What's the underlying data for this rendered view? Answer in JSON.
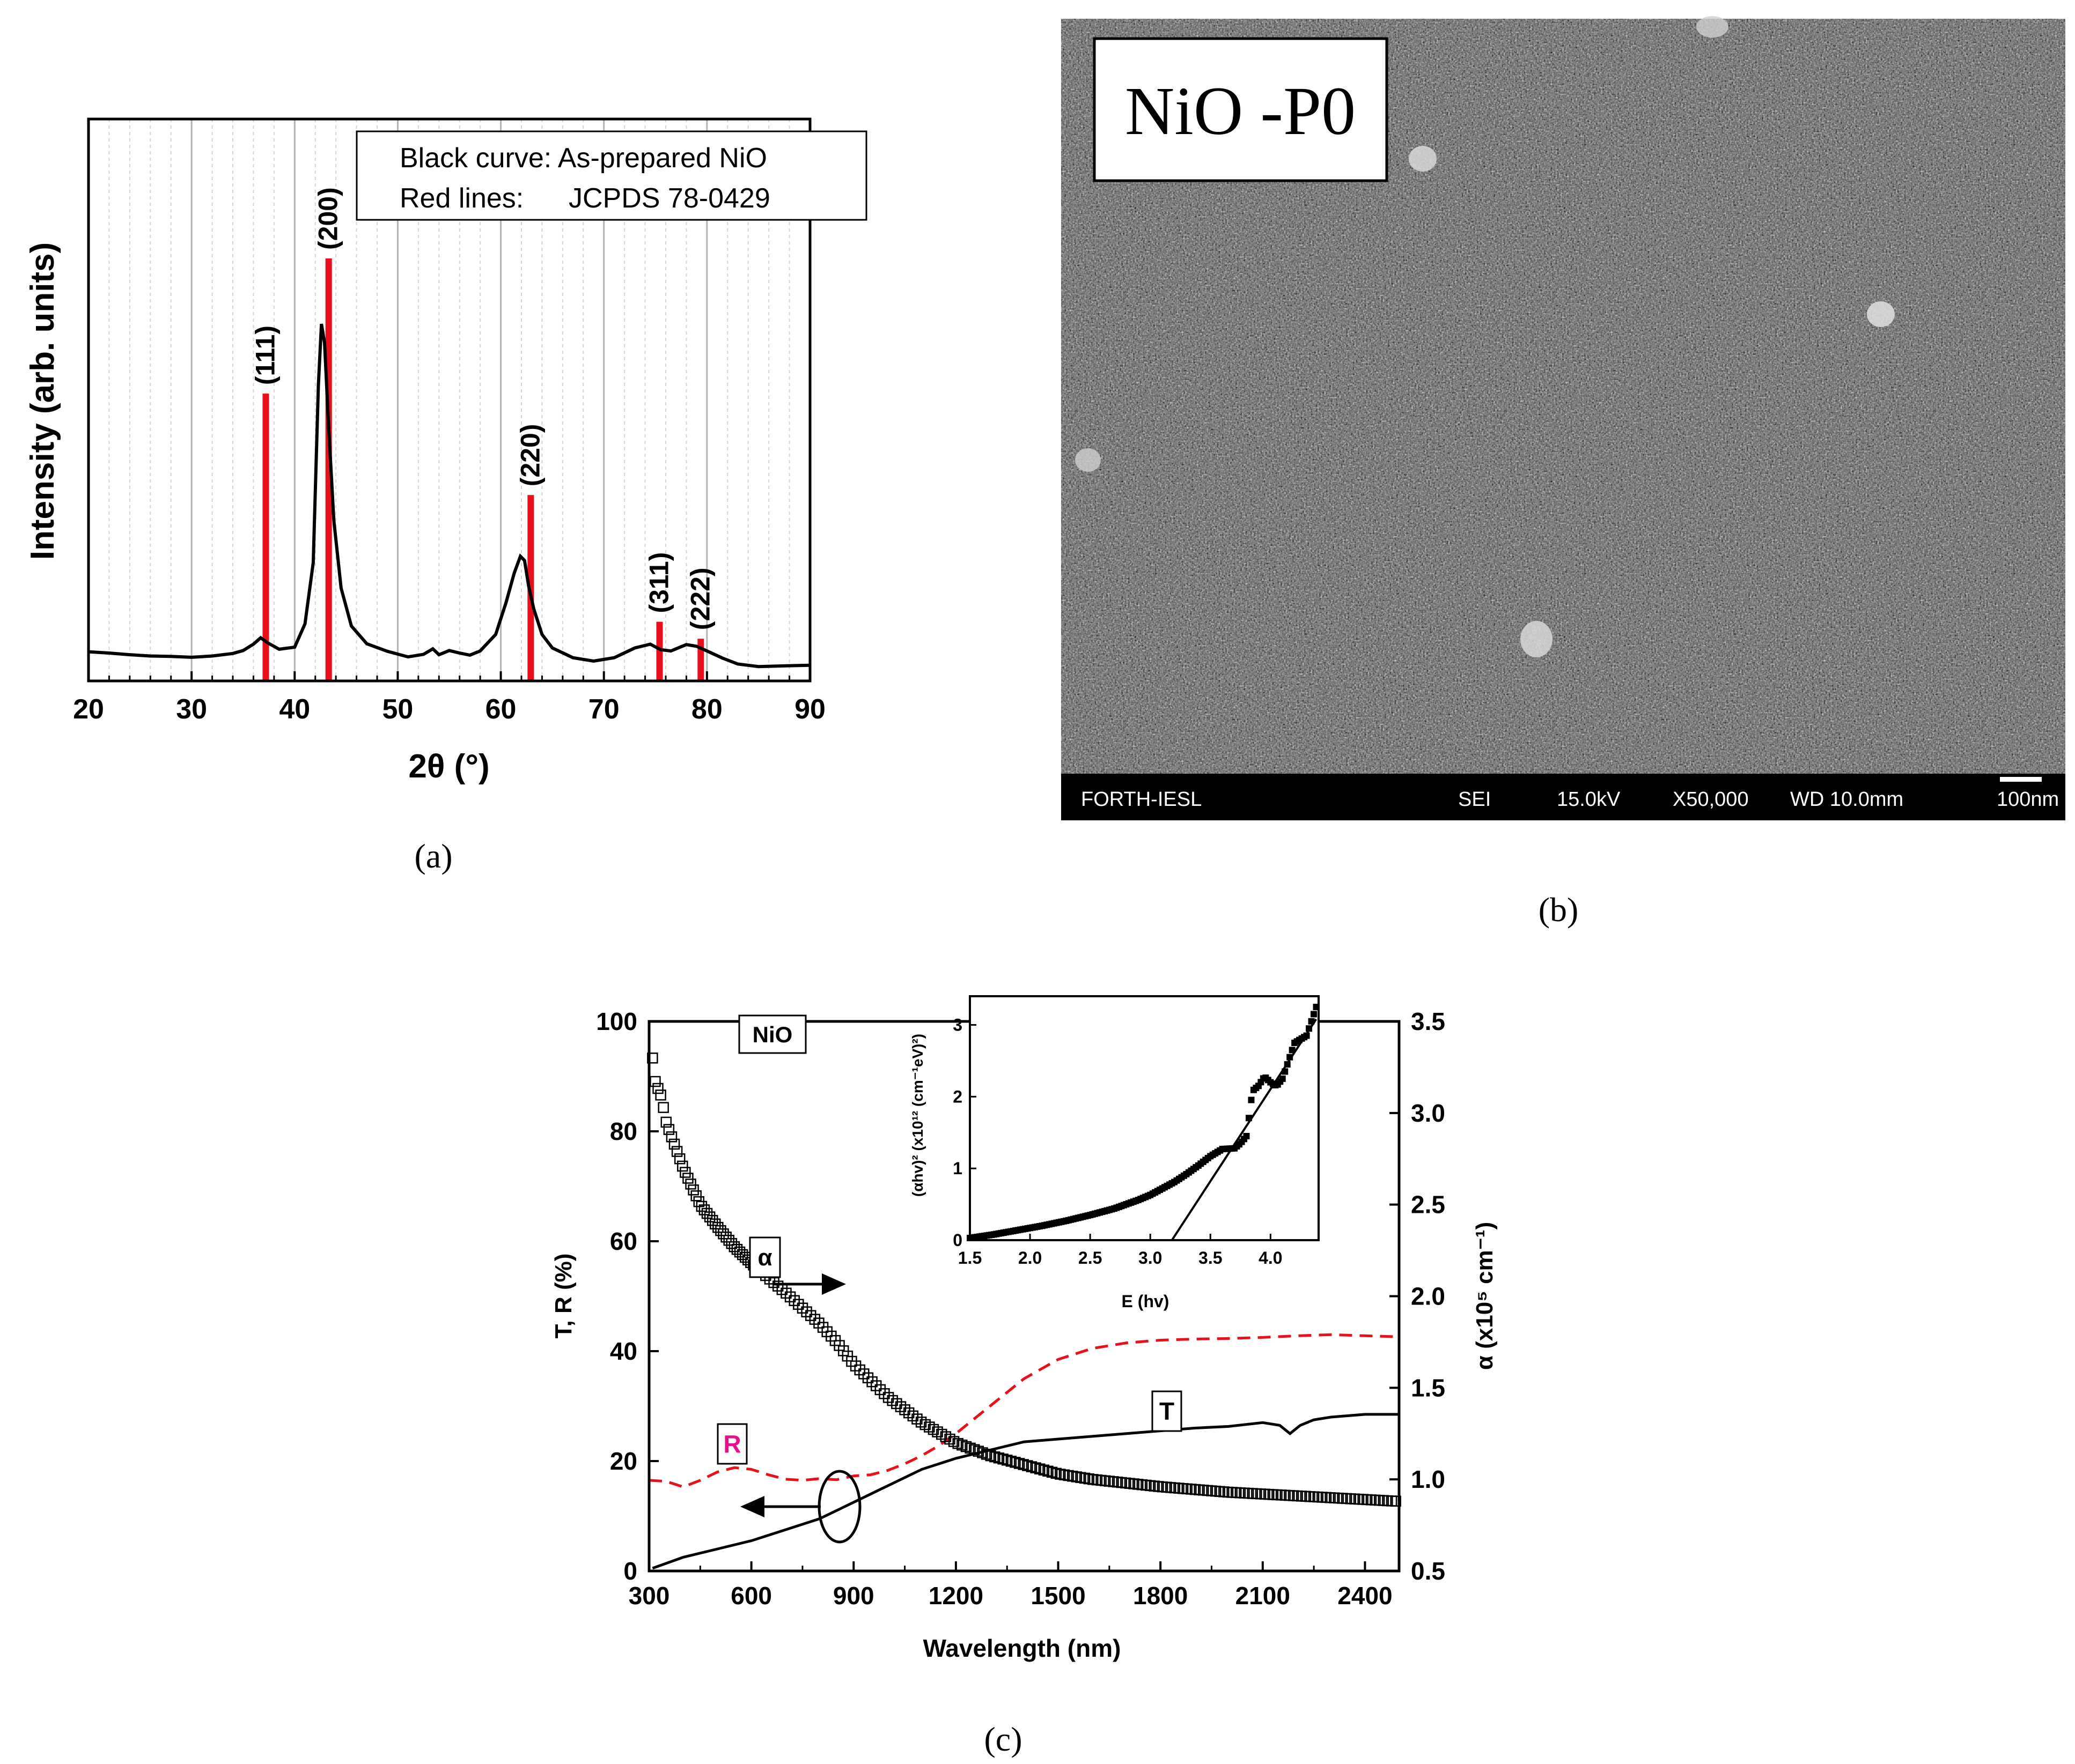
{
  "panel_a": {
    "caption": "(a)",
    "legend": {
      "line1": "Black curve: As-prepared NiO",
      "line2_label": "Red lines:",
      "line2_value": "JCPDS 78-0429"
    },
    "colors": {
      "curve": "#000000",
      "reference": "#e8101a"
    },
    "chart_data": {
      "type": "line",
      "title": "",
      "xlabel": "2θ (°)",
      "ylabel": "Intensity (arb. units)",
      "xlim": [
        20,
        90
      ],
      "ylim": [
        0,
        100
      ],
      "x_ticks": [
        "20",
        "30",
        "40",
        "50",
        "60",
        "70",
        "80",
        "90"
      ],
      "grid": true,
      "series": [
        {
          "name": "As-prepared NiO",
          "x": [
            20,
            22,
            24,
            26,
            28,
            30,
            32,
            34,
            35,
            36,
            36.7,
            37.4,
            38.5,
            40,
            41,
            41.8,
            42.3,
            42.6,
            42.9,
            43.3,
            43.8,
            44.5,
            45.5,
            47,
            49,
            51,
            52.5,
            53.4,
            54,
            55,
            56,
            57,
            58,
            59.5,
            60.5,
            61.3,
            61.9,
            62.3,
            62.7,
            63.2,
            64,
            65,
            67,
            69,
            71,
            73,
            74.5,
            75.5,
            76.5,
            78,
            79,
            80,
            81.5,
            83,
            85,
            88,
            90
          ],
          "y": [
            6.9,
            6.6,
            6.2,
            5.9,
            5.8,
            5.6,
            5.9,
            6.5,
            7.2,
            8.7,
            10.2,
            9,
            7.5,
            8,
            13.5,
            28,
            70,
            84.5,
            80,
            60,
            38,
            22,
            13,
            8.8,
            7,
            5.7,
            6.3,
            7.6,
            6.2,
            7.2,
            6.6,
            6.1,
            7.1,
            11,
            18.5,
            25.5,
            29.5,
            28.5,
            22.5,
            17,
            11,
            7.8,
            5.5,
            4.7,
            5.5,
            7.8,
            8.7,
            7.4,
            7.1,
            8.6,
            8.2,
            7.1,
            5.4,
            4,
            3.4,
            3.6,
            3.7
          ]
        }
      ],
      "reference_lines": [
        {
          "label": "(111)",
          "x": 37.2,
          "height": 68
        },
        {
          "label": "(200)",
          "x": 43.3,
          "height": 100
        },
        {
          "label": "(220)",
          "x": 62.9,
          "height": 44
        },
        {
          "label": "(311)",
          "x": 75.4,
          "height": 14
        },
        {
          "label": "(222)",
          "x": 79.4,
          "height": 10
        }
      ]
    }
  },
  "panel_b": {
    "caption": "(b)",
    "image_label": "NiO -P0",
    "scale_bar": {
      "institution": "FORTH-IESL",
      "detector": "SEI",
      "voltage": "15.0kV",
      "magnification": "X50,000",
      "working_distance": "WD 10.0mm",
      "scale": "100nm"
    }
  },
  "panel_c": {
    "caption": "(c)",
    "sample_label": "NiO",
    "label_T": "T",
    "label_R": "R",
    "label_alpha": "α",
    "colors": {
      "T": "#000000",
      "R": "#e8101a",
      "R_label": "#e8108a",
      "alpha": "#000000"
    },
    "chart_data": {
      "type": "line",
      "title": "",
      "xlabel": "Wavelength  (nm)",
      "ylabel": "T,  R  (%)",
      "y2label": "α (x10⁵ cm⁻¹)",
      "xlim": [
        300,
        2500
      ],
      "ylim": [
        0,
        100
      ],
      "y2lim": [
        0.5,
        3.5
      ],
      "x_ticks": [
        "300",
        "600",
        "900",
        "1200",
        "1500",
        "1800",
        "2100",
        "2400"
      ],
      "y_ticks": [
        "0",
        "20",
        "40",
        "60",
        "80",
        "100"
      ],
      "y2_ticks": [
        "0.5",
        "1.0",
        "1.5",
        "2.0",
        "2.5",
        "3.0",
        "3.5"
      ],
      "series": [
        {
          "name": "T",
          "axis": "left",
          "x": [
            310,
            400,
            500,
            600,
            700,
            800,
            850,
            900,
            1000,
            1100,
            1200,
            1300,
            1400,
            1500,
            1600,
            1700,
            1800,
            1900,
            2000,
            2100,
            2150,
            2180,
            2210,
            2250,
            2300,
            2400,
            2500
          ],
          "y": [
            0.5,
            2.5,
            4,
            5.5,
            7.5,
            9.5,
            11,
            12.5,
            15.5,
            18.5,
            20.5,
            22,
            23.5,
            24,
            24.5,
            25,
            25.5,
            26,
            26.3,
            27,
            26.5,
            25,
            26.5,
            27.5,
            28,
            28.5,
            28.5
          ]
        },
        {
          "name": "R",
          "axis": "left",
          "x": [
            300,
            350,
            400,
            450,
            500,
            550,
            600,
            650,
            700,
            750,
            800,
            850,
            900,
            950,
            1000,
            1050,
            1100,
            1150,
            1200,
            1250,
            1300,
            1350,
            1400,
            1500,
            1600,
            1700,
            1800,
            1900,
            2000,
            2100,
            2200,
            2300,
            2400,
            2500
          ],
          "y": [
            16.5,
            16.3,
            15.3,
            16.5,
            18,
            18.8,
            18.5,
            17.5,
            16.7,
            16.5,
            16.8,
            16.6,
            17.3,
            17.5,
            18.3,
            19.5,
            21,
            22.8,
            25,
            27.5,
            30,
            32.5,
            35,
            38.5,
            40.5,
            41.5,
            42,
            42.2,
            42.3,
            42.5,
            42.8,
            43,
            42.8,
            42.6
          ]
        },
        {
          "name": "α",
          "axis": "right",
          "x": [
            310,
            320,
            330,
            340,
            350,
            360,
            380,
            400,
            450,
            500,
            550,
            600,
            700,
            800,
            850,
            900,
            1000,
            1100,
            1200,
            1300,
            1400,
            1500,
            1600,
            1800,
            2000,
            2200,
            2400,
            2500
          ],
          "y": [
            3.3,
            3.14,
            3.13,
            3.05,
            2.95,
            2.9,
            2.8,
            2.7,
            2.5,
            2.38,
            2.27,
            2.18,
            2.02,
            1.85,
            1.75,
            1.63,
            1.45,
            1.31,
            1.2,
            1.13,
            1.08,
            1.03,
            1.0,
            0.96,
            0.93,
            0.91,
            0.89,
            0.88
          ]
        }
      ]
    },
    "inset": {
      "chart_data": {
        "type": "scatter",
        "title": "",
        "xlabel": "E  (hv)",
        "ylabel": "(αhv)² (x10¹² (cm⁻¹eV)²)",
        "xlim": [
          1.5,
          4.4
        ],
        "ylim": [
          0,
          3.4
        ],
        "x_ticks": [
          "1.5",
          "2.0",
          "2.5",
          "3.0",
          "3.5",
          "4.0"
        ],
        "y_ticks": [
          "0",
          "1",
          "2",
          "3"
        ],
        "series": [
          {
            "name": "data",
            "x": [
              1.5,
              1.7,
              1.9,
              2.1,
              2.3,
              2.5,
              2.7,
              2.9,
              3.0,
              3.1,
              3.2,
              3.3,
              3.4,
              3.5,
              3.6,
              3.7,
              3.75,
              3.8,
              3.85,
              3.9,
              3.95,
              4.0,
              4.05,
              4.1,
              4.2,
              4.3,
              4.38
            ],
            "y": [
              0.03,
              0.08,
              0.14,
              0.2,
              0.27,
              0.35,
              0.44,
              0.56,
              0.63,
              0.72,
              0.81,
              0.92,
              1.04,
              1.17,
              1.27,
              1.28,
              1.35,
              1.45,
              2.08,
              2.15,
              2.28,
              2.2,
              2.15,
              2.25,
              2.75,
              2.85,
              3.25
            ]
          },
          {
            "name": "linear fit",
            "x": [
              3.18,
              4.38
            ],
            "y": [
              0,
              3.08
            ]
          }
        ]
      }
    }
  }
}
